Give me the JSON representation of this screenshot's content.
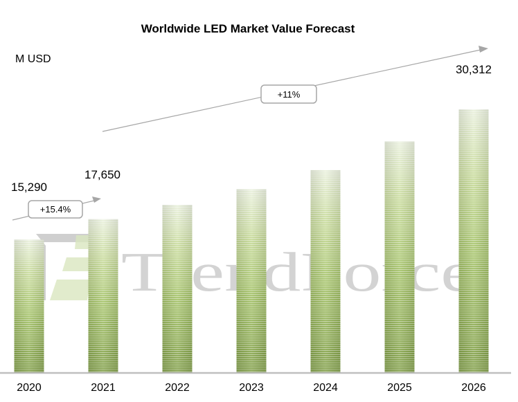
{
  "chart_data": {
    "type": "bar",
    "title": "Worldwide LED Market Value Forecast",
    "ylabel": "M USD",
    "xlabel": "",
    "categories": [
      "2020",
      "2021",
      "2022",
      "2023",
      "2024",
      "2025",
      "2026"
    ],
    "values": [
      15290,
      17650,
      19300,
      21100,
      23300,
      26600,
      30312
    ],
    "data_labels": [
      "15,290",
      "17,650",
      "",
      "",
      "",
      "",
      "30,312"
    ],
    "ylim": [
      0,
      30312
    ],
    "grid": false,
    "legend": "none",
    "annotations": [
      {
        "text": "+15.4%",
        "type": "growth-arrow",
        "from": "2020",
        "to": "2021"
      },
      {
        "text": "+11%",
        "type": "growth-arrow",
        "from": "2021",
        "to": "2026"
      }
    ],
    "watermark": "TrendForce",
    "colors": {
      "bar_dark": "#7a9a3c",
      "bar_mid": "#a8c66a",
      "bar_light": "#e6efd6",
      "axis": "#bfbfbf",
      "arrow": "#a6a6a6",
      "watermark": "#c8c8c8"
    }
  }
}
